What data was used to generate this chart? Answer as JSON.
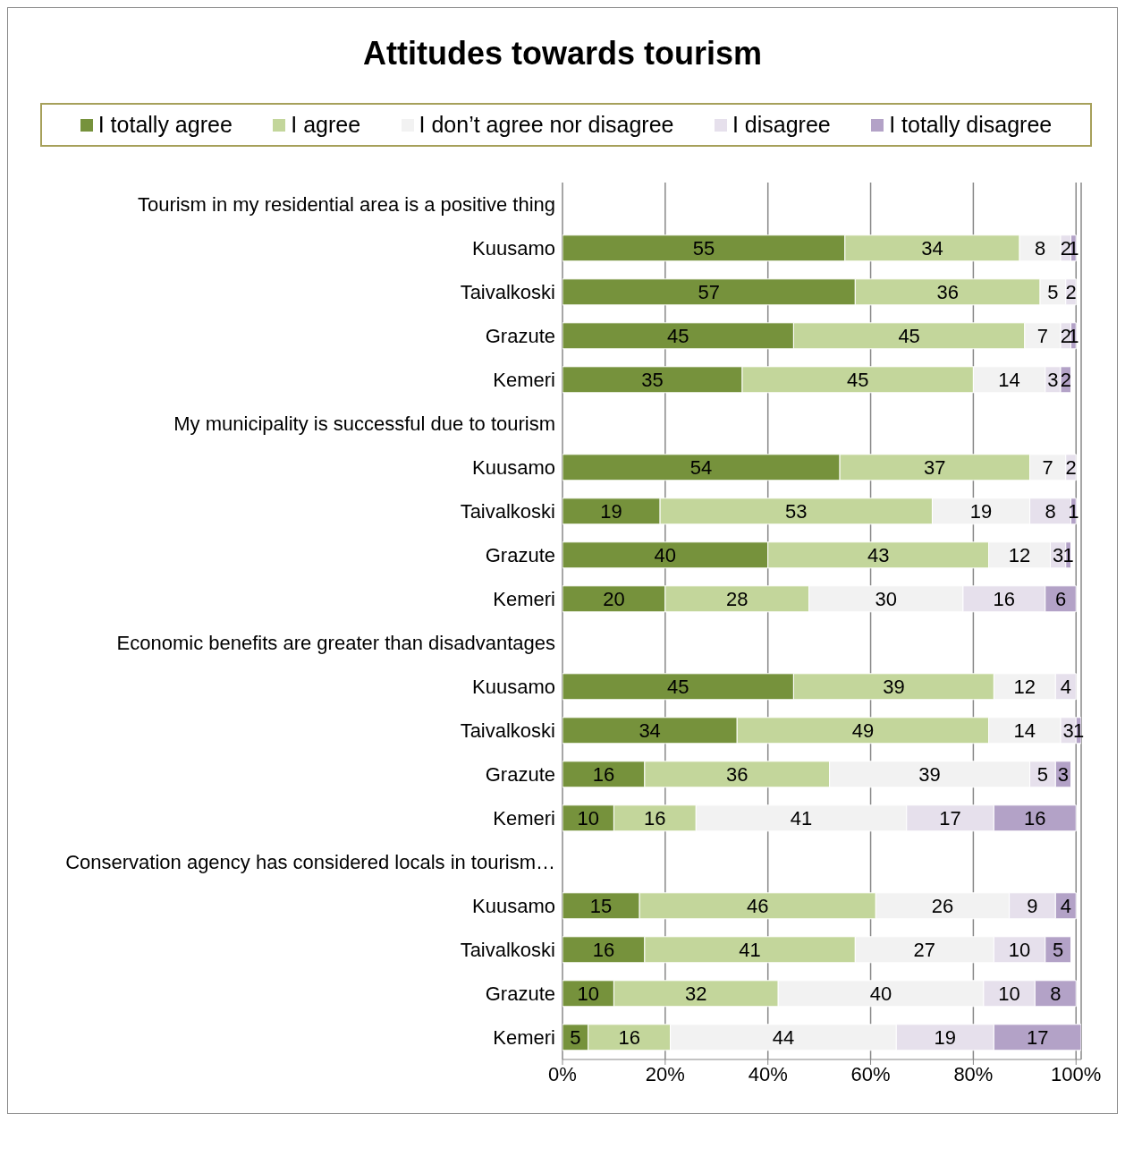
{
  "chart_data": {
    "type": "bar",
    "title": "Attitudes towards tourism",
    "orientation": "horizontal",
    "stacked": true,
    "data_labels": true,
    "legend": "top",
    "grid": "x",
    "categories": [
      "Tourism in my residential area is a positive thing",
      "Kuusamo",
      "Taivalkoski",
      "Grazute",
      "Kemeri",
      "My municipality is successful due to tourism",
      "Kuusamo",
      "Taivalkoski",
      "Grazute",
      "Kemeri",
      "Economic benefits are greater than disadvantages",
      "Kuusamo",
      "Taivalkoski",
      "Grazute",
      "Kemeri",
      "Conservation agency has considered locals in tourism…",
      "Kuusamo",
      "Taivalkoski",
      "Grazute",
      "Kemeri"
    ],
    "series": [
      {
        "name": "I totally agree",
        "color": "#76923c",
        "values": [
          null,
          55,
          57,
          45,
          35,
          null,
          54,
          19,
          40,
          20,
          null,
          45,
          34,
          16,
          10,
          null,
          15,
          16,
          10,
          5
        ]
      },
      {
        "name": "I agree",
        "color": "#c3d69b",
        "values": [
          null,
          34,
          36,
          45,
          45,
          null,
          37,
          53,
          43,
          28,
          null,
          39,
          49,
          36,
          16,
          null,
          46,
          41,
          32,
          16
        ]
      },
      {
        "name": "I don’t agree nor disagree",
        "color": "#f2f2f2",
        "values": [
          null,
          8,
          5,
          7,
          14,
          null,
          7,
          19,
          12,
          30,
          null,
          12,
          14,
          39,
          41,
          null,
          26,
          27,
          40,
          44
        ]
      },
      {
        "name": "I disagree",
        "color": "#e6e0ec",
        "values": [
          null,
          2,
          2,
          2,
          3,
          null,
          2,
          8,
          3,
          16,
          null,
          4,
          3,
          5,
          17,
          null,
          9,
          10,
          10,
          19
        ]
      },
      {
        "name": "I totally disagree",
        "color": "#b3a2c7",
        "values": [
          null,
          1,
          null,
          1,
          2,
          null,
          null,
          1,
          1,
          6,
          null,
          null,
          1,
          3,
          16,
          null,
          4,
          5,
          8,
          17
        ]
      }
    ],
    "xlim": [
      0,
      101
    ],
    "xticks": [
      {
        "value": 0,
        "label": "0%"
      },
      {
        "value": 20,
        "label": "20%"
      },
      {
        "value": 40,
        "label": "40%"
      },
      {
        "value": 60,
        "label": "60%"
      },
      {
        "value": 80,
        "label": "80%"
      },
      {
        "value": 100,
        "label": "100%"
      }
    ]
  }
}
